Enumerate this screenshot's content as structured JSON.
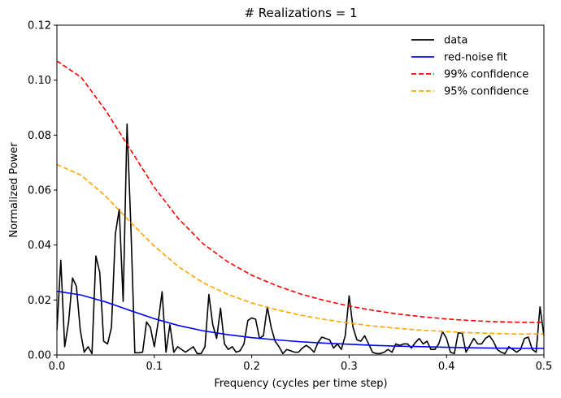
{
  "chart_data": {
    "type": "line",
    "title": "# Realizations = 1",
    "xlabel": "Frequency (cycles per time step)",
    "ylabel": "Normalized Power",
    "xlim": [
      0,
      0.5
    ],
    "ylim": [
      0,
      0.12
    ],
    "xticks": [
      "0.0",
      "0.1",
      "0.2",
      "0.3",
      "0.4",
      "0.5"
    ],
    "yticks": [
      "0.00",
      "0.02",
      "0.04",
      "0.06",
      "0.08",
      "0.10",
      "0.12"
    ],
    "legend_position": "top-right",
    "series": [
      {
        "name": "data",
        "color": "#000000",
        "dash": "solid",
        "x": [
          0.0,
          0.004,
          0.008,
          0.012,
          0.016,
          0.02,
          0.024,
          0.028,
          0.032,
          0.036,
          0.04,
          0.044,
          0.048,
          0.052,
          0.056,
          0.06,
          0.064,
          0.068,
          0.072,
          0.076,
          0.08,
          0.084,
          0.088,
          0.092,
          0.096,
          0.1,
          0.104,
          0.108,
          0.112,
          0.116,
          0.12,
          0.124,
          0.128,
          0.132,
          0.136,
          0.14,
          0.144,
          0.148,
          0.152,
          0.156,
          0.16,
          0.164,
          0.168,
          0.172,
          0.176,
          0.18,
          0.184,
          0.188,
          0.192,
          0.196,
          0.2,
          0.204,
          0.208,
          0.212,
          0.216,
          0.22,
          0.224,
          0.228,
          0.232,
          0.236,
          0.24,
          0.244,
          0.248,
          0.252,
          0.256,
          0.26,
          0.264,
          0.268,
          0.272,
          0.276,
          0.28,
          0.284,
          0.288,
          0.292,
          0.296,
          0.3,
          0.304,
          0.308,
          0.312,
          0.316,
          0.32,
          0.324,
          0.328,
          0.332,
          0.336,
          0.34,
          0.344,
          0.348,
          0.352,
          0.356,
          0.36,
          0.364,
          0.368,
          0.372,
          0.376,
          0.38,
          0.384,
          0.388,
          0.392,
          0.396,
          0.4,
          0.404,
          0.408,
          0.412,
          0.416,
          0.42,
          0.424,
          0.428,
          0.432,
          0.436,
          0.44,
          0.444,
          0.448,
          0.452,
          0.456,
          0.46,
          0.464,
          0.468,
          0.472,
          0.476,
          0.48,
          0.484,
          0.488,
          0.492,
          0.496,
          0.5
        ],
        "y": [
          0.009,
          0.0345,
          0.003,
          0.012,
          0.028,
          0.025,
          0.009,
          0.001,
          0.003,
          0.0005,
          0.036,
          0.03,
          0.005,
          0.004,
          0.01,
          0.044,
          0.053,
          0.0195,
          0.084,
          0.046,
          0.0008,
          0.0008,
          0.001,
          0.012,
          0.01,
          0.003,
          0.012,
          0.023,
          0.001,
          0.011,
          0.001,
          0.003,
          0.002,
          0.001,
          0.002,
          0.003,
          0.0005,
          0.0005,
          0.003,
          0.022,
          0.011,
          0.006,
          0.017,
          0.004,
          0.002,
          0.003,
          0.001,
          0.0015,
          0.004,
          0.0125,
          0.0135,
          0.013,
          0.006,
          0.007,
          0.0175,
          0.01,
          0.005,
          0.003,
          0.0005,
          0.002,
          0.0015,
          0.001,
          0.001,
          0.0025,
          0.0035,
          0.0025,
          0.001,
          0.0045,
          0.0065,
          0.006,
          0.0055,
          0.0025,
          0.004,
          0.002,
          0.007,
          0.0215,
          0.01,
          0.0055,
          0.005,
          0.007,
          0.004,
          0.001,
          0.0005,
          0.0005,
          0.001,
          0.002,
          0.001,
          0.004,
          0.0035,
          0.004,
          0.004,
          0.0025,
          0.0045,
          0.006,
          0.004,
          0.005,
          0.002,
          0.002,
          0.004,
          0.0085,
          0.006,
          0.001,
          0.0005,
          0.008,
          0.008,
          0.001,
          0.0035,
          0.006,
          0.004,
          0.004,
          0.006,
          0.007,
          0.005,
          0.002,
          0.001,
          0.0005,
          0.003,
          0.002,
          0.001,
          0.002,
          0.006,
          0.0065,
          0.002,
          0.001,
          0.0175,
          0.007
        ]
      },
      {
        "name": "red-noise fit",
        "color": "#0000ff",
        "dash": "solid",
        "x": [
          0.0,
          0.025,
          0.05,
          0.075,
          0.1,
          0.125,
          0.15,
          0.175,
          0.2,
          0.225,
          0.25,
          0.275,
          0.3,
          0.325,
          0.35,
          0.375,
          0.4,
          0.425,
          0.45,
          0.475,
          0.5
        ],
        "y": [
          0.0232,
          0.0218,
          0.0193,
          0.0162,
          0.0132,
          0.0107,
          0.0088,
          0.0074,
          0.0063,
          0.0055,
          0.0048,
          0.0043,
          0.0039,
          0.0035,
          0.0032,
          0.003,
          0.0028,
          0.0026,
          0.0025,
          0.0024,
          0.0024
        ]
      },
      {
        "name": "99% confidence",
        "color": "#ff0000",
        "dash": "dashed",
        "x": [
          0.0,
          0.025,
          0.05,
          0.075,
          0.1,
          0.125,
          0.15,
          0.175,
          0.2,
          0.225,
          0.25,
          0.275,
          0.3,
          0.325,
          0.35,
          0.375,
          0.4,
          0.425,
          0.45,
          0.475,
          0.5
        ],
        "y": [
          0.107,
          0.101,
          0.089,
          0.075,
          0.061,
          0.0495,
          0.0405,
          0.034,
          0.029,
          0.0253,
          0.0222,
          0.0198,
          0.0178,
          0.0162,
          0.0149,
          0.0139,
          0.0131,
          0.0125,
          0.0121,
          0.0119,
          0.0118
        ]
      },
      {
        "name": "95% confidence",
        "color": "#ffa500",
        "dash": "dashed",
        "x": [
          0.0,
          0.025,
          0.05,
          0.075,
          0.1,
          0.125,
          0.15,
          0.175,
          0.2,
          0.225,
          0.25,
          0.275,
          0.3,
          0.325,
          0.35,
          0.375,
          0.4,
          0.425,
          0.45,
          0.475,
          0.5
        ],
        "y": [
          0.0693,
          0.0654,
          0.0578,
          0.0485,
          0.0396,
          0.0321,
          0.0263,
          0.0221,
          0.0189,
          0.0165,
          0.0145,
          0.0129,
          0.0116,
          0.0105,
          0.0097,
          0.009,
          0.0085,
          0.0081,
          0.0078,
          0.0076,
          0.0076
        ]
      }
    ]
  }
}
